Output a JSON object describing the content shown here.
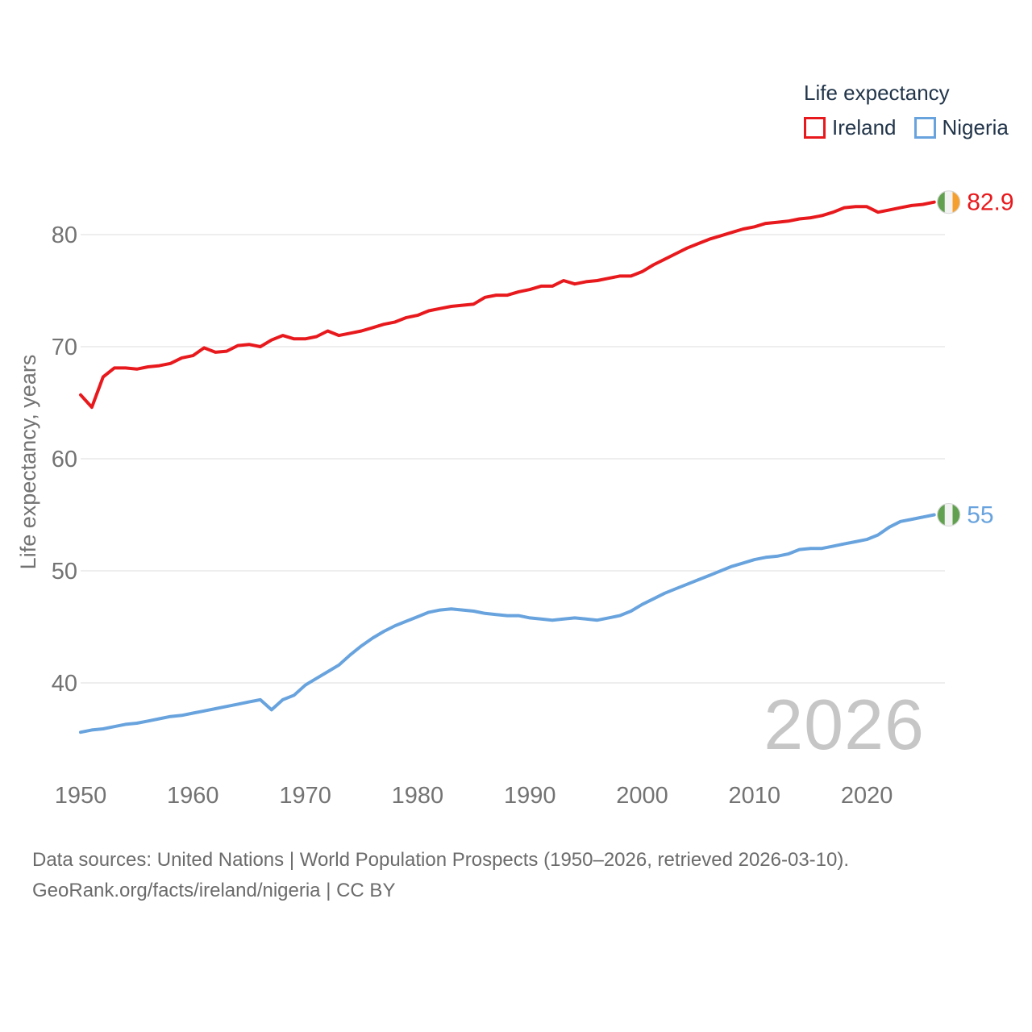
{
  "legend": {
    "title": "Life expectancy",
    "items": [
      {
        "label": "Ireland",
        "color": "#e8191d"
      },
      {
        "label": "Nigeria",
        "color": "#68a3de"
      }
    ]
  },
  "chart_data": {
    "type": "line",
    "title": "Life expectancy",
    "xlabel": "",
    "ylabel": "Life expectancy, years",
    "xlim": [
      1950,
      2026
    ],
    "ylim": [
      33,
      86
    ],
    "xticks": [
      1950,
      1960,
      1970,
      1980,
      1990,
      2000,
      2010,
      2020
    ],
    "yticks": [
      40,
      50,
      60,
      70,
      80
    ],
    "grid": true,
    "legend_position": "top-right",
    "x": [
      1950,
      1951,
      1952,
      1953,
      1954,
      1955,
      1956,
      1957,
      1958,
      1959,
      1960,
      1961,
      1962,
      1963,
      1964,
      1965,
      1966,
      1967,
      1968,
      1969,
      1970,
      1971,
      1972,
      1973,
      1974,
      1975,
      1976,
      1977,
      1978,
      1979,
      1980,
      1981,
      1982,
      1983,
      1984,
      1985,
      1986,
      1987,
      1988,
      1989,
      1990,
      1991,
      1992,
      1993,
      1994,
      1995,
      1996,
      1997,
      1998,
      1999,
      2000,
      2001,
      2002,
      2003,
      2004,
      2005,
      2006,
      2007,
      2008,
      2009,
      2010,
      2011,
      2012,
      2013,
      2014,
      2015,
      2016,
      2017,
      2018,
      2019,
      2020,
      2021,
      2022,
      2023,
      2024,
      2025,
      2026
    ],
    "series": [
      {
        "name": "Ireland",
        "color": "#e8191d",
        "end_label": "82.9",
        "flag_colors": [
          "#61a04f",
          "#f2f2f2",
          "#f5a02e"
        ],
        "values": [
          65.7,
          64.6,
          67.3,
          68.1,
          68.1,
          68.0,
          68.2,
          68.3,
          68.5,
          69.0,
          69.2,
          69.9,
          69.5,
          69.6,
          70.1,
          70.2,
          70.0,
          70.6,
          71.0,
          70.7,
          70.7,
          70.9,
          71.4,
          71.0,
          71.2,
          71.4,
          71.7,
          72.0,
          72.2,
          72.6,
          72.8,
          73.2,
          73.4,
          73.6,
          73.7,
          73.8,
          74.4,
          74.6,
          74.6,
          74.9,
          75.1,
          75.4,
          75.4,
          75.9,
          75.6,
          75.8,
          75.9,
          76.1,
          76.3,
          76.3,
          76.7,
          77.3,
          77.8,
          78.3,
          78.8,
          79.2,
          79.6,
          79.9,
          80.2,
          80.5,
          80.7,
          81.0,
          81.1,
          81.2,
          81.4,
          81.5,
          81.7,
          82.0,
          82.4,
          82.5,
          82.5,
          82.0,
          82.2,
          82.4,
          82.6,
          82.7,
          82.9
        ]
      },
      {
        "name": "Nigeria",
        "color": "#68a3de",
        "end_label": "55",
        "flag_colors": [
          "#61a04f",
          "#f2f2f2",
          "#61a04f"
        ],
        "values": [
          35.6,
          35.8,
          35.9,
          36.1,
          36.3,
          36.4,
          36.6,
          36.8,
          37.0,
          37.1,
          37.3,
          37.5,
          37.7,
          37.9,
          38.1,
          38.3,
          38.5,
          37.6,
          38.5,
          38.9,
          39.8,
          40.4,
          41.0,
          41.6,
          42.5,
          43.3,
          44.0,
          44.6,
          45.1,
          45.5,
          45.9,
          46.3,
          46.5,
          46.6,
          46.5,
          46.4,
          46.2,
          46.1,
          46.0,
          46.0,
          45.8,
          45.7,
          45.6,
          45.7,
          45.8,
          45.7,
          45.6,
          45.8,
          46.0,
          46.4,
          47.0,
          47.5,
          48.0,
          48.4,
          48.8,
          49.2,
          49.6,
          50.0,
          50.4,
          50.7,
          51.0,
          51.2,
          51.3,
          51.5,
          51.9,
          52.0,
          52.0,
          52.2,
          52.4,
          52.6,
          52.8,
          53.2,
          53.9,
          54.4,
          54.6,
          54.8,
          55.0
        ]
      }
    ]
  },
  "watermark": "2026",
  "footer": {
    "line1": "Data sources: United Nations | World Population Prospects (1950–2026, retrieved 2026-03-10).",
    "line2": "GeoRank.org/facts/ireland/nigeria | CC BY"
  }
}
